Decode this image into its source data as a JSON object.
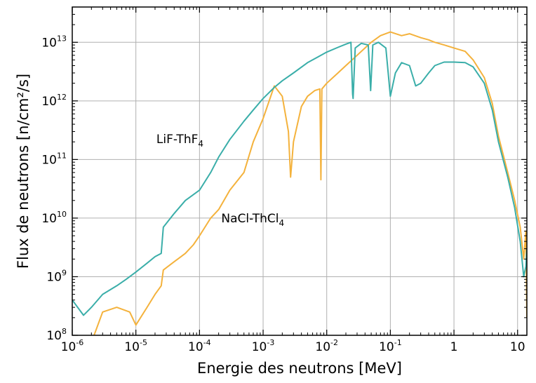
{
  "chart_data": {
    "type": "line",
    "xlabel": "Energie des neutrons [MeV]",
    "ylabel": "Flux de neutrons [n/cm²/s]",
    "xscale": "log",
    "yscale": "log",
    "xlim": [
      1e-06,
      14
    ],
    "ylim": [
      100000000.0,
      40000000000000.0
    ],
    "grid": true,
    "x_ticks": [
      {
        "value": 1e-06,
        "base": "10",
        "exp": "-6"
      },
      {
        "value": 1e-05,
        "base": "10",
        "exp": "-5"
      },
      {
        "value": 0.0001,
        "base": "10",
        "exp": "-4"
      },
      {
        "value": 0.001,
        "base": "10",
        "exp": "-3"
      },
      {
        "value": 0.01,
        "base": "10",
        "exp": "-2"
      },
      {
        "value": 0.1,
        "base": "10",
        "exp": "-1"
      },
      {
        "value": 1,
        "base": "1",
        "exp": ""
      },
      {
        "value": 10,
        "base": "10",
        "exp": ""
      }
    ],
    "y_ticks": [
      {
        "value": 100000000.0,
        "base": "10",
        "exp": "8"
      },
      {
        "value": 1000000000.0,
        "base": "10",
        "exp": "9"
      },
      {
        "value": 10000000000.0,
        "base": "10",
        "exp": "10"
      },
      {
        "value": 100000000000.0,
        "base": "10",
        "exp": "11"
      },
      {
        "value": 1000000000000.0,
        "base": "10",
        "exp": "12"
      },
      {
        "value": 10000000000000.0,
        "base": "10",
        "exp": "13"
      }
    ],
    "series": [
      {
        "name": "LiF-ThF4",
        "label_text": "LiF-ThF",
        "label_sub": "4",
        "label_at": [
          2.1e-05,
          190000000000.0
        ],
        "color": "#3aaea9",
        "points": [
          [
            1e-06,
            400000000.0
          ],
          [
            1.5e-06,
            220000000.0
          ],
          [
            2e-06,
            300000000.0
          ],
          [
            3e-06,
            500000000.0
          ],
          [
            5e-06,
            700000000.0
          ],
          [
            7e-06,
            900000000.0
          ],
          [
            1e-05,
            1200000000.0
          ],
          [
            1.5e-05,
            1700000000.0
          ],
          [
            2e-05,
            2200000000.0
          ],
          [
            2.5e-05,
            2500000000.0
          ],
          [
            2.7e-05,
            7000000000.0
          ],
          [
            4e-05,
            12000000000.0
          ],
          [
            6e-05,
            20000000000.0
          ],
          [
            0.0001,
            30000000000.0
          ],
          [
            0.00015,
            60000000000.0
          ],
          [
            0.0002,
            110000000000.0
          ],
          [
            0.0003,
            220000000000.0
          ],
          [
            0.0005,
            450000000000.0
          ],
          [
            0.0007,
            700000000000.0
          ],
          [
            0.001,
            1100000000000.0
          ],
          [
            0.0015,
            1700000000000.0
          ],
          [
            0.002,
            2200000000000.0
          ],
          [
            0.003,
            3000000000000.0
          ],
          [
            0.005,
            4500000000000.0
          ],
          [
            0.007,
            5500000000000.0
          ],
          [
            0.01,
            6800000000000.0
          ],
          [
            0.015,
            8200000000000.0
          ],
          [
            0.02,
            9300000000000.0
          ],
          [
            0.024,
            10000000000000.0
          ],
          [
            0.0255,
            1300000000000.0
          ],
          [
            0.026,
            1100000000000.0
          ],
          [
            0.028,
            8000000000000.0
          ],
          [
            0.035,
            9600000000000.0
          ],
          [
            0.045,
            9000000000000.0
          ],
          [
            0.049,
            1500000000000.0
          ],
          [
            0.053,
            9000000000000.0
          ],
          [
            0.065,
            10000000000000.0
          ],
          [
            0.085,
            8000000000000.0
          ],
          [
            0.1,
            1200000000000.0
          ],
          [
            0.12,
            3000000000000.0
          ],
          [
            0.15,
            4500000000000.0
          ],
          [
            0.2,
            4000000000000.0
          ],
          [
            0.25,
            1800000000000.0
          ],
          [
            0.3,
            2000000000000.0
          ],
          [
            0.4,
            3000000000000.0
          ],
          [
            0.5,
            4000000000000.0
          ],
          [
            0.7,
            4600000000000.0
          ],
          [
            1,
            4600000000000.0
          ],
          [
            1.5,
            4500000000000.0
          ],
          [
            2,
            3800000000000.0
          ],
          [
            3,
            2000000000000.0
          ],
          [
            4,
            700000000000.0
          ],
          [
            5,
            200000000000.0
          ],
          [
            7,
            50000000000.0
          ],
          [
            9,
            15000000000.0
          ],
          [
            11,
            4000000000.0
          ],
          [
            12.5,
            1000000000.0
          ],
          [
            13.5,
            1500000000.0
          ],
          [
            14,
            3000000000.0
          ]
        ]
      },
      {
        "name": "NaCl-ThCl4",
        "label_text": "NaCl-ThCl",
        "label_sub": "4",
        "label_at": [
          0.00022,
          8500000000.0
        ],
        "color": "#f4b23c",
        "points": [
          [
            2.2e-06,
            100000000.0
          ],
          [
            3e-06,
            250000000.0
          ],
          [
            5e-06,
            300000000.0
          ],
          [
            8e-06,
            250000000.0
          ],
          [
            1e-05,
            150000000.0
          ],
          [
            1.5e-05,
            300000000.0
          ],
          [
            2e-05,
            500000000.0
          ],
          [
            2.5e-05,
            700000000.0
          ],
          [
            2.7e-05,
            1300000000.0
          ],
          [
            4e-05,
            1800000000.0
          ],
          [
            6e-05,
            2500000000.0
          ],
          [
            8e-05,
            3500000000.0
          ],
          [
            0.0001,
            5000000000.0
          ],
          [
            0.00015,
            10000000000.0
          ],
          [
            0.0002,
            14000000000.0
          ],
          [
            0.0003,
            30000000000.0
          ],
          [
            0.0005,
            60000000000.0
          ],
          [
            0.0007,
            200000000000.0
          ],
          [
            0.001,
            500000000000.0
          ],
          [
            0.0015,
            1800000000000.0
          ],
          [
            0.002,
            1200000000000.0
          ],
          [
            0.0025,
            300000000000.0
          ],
          [
            0.0027,
            50000000000.0
          ],
          [
            0.003,
            200000000000.0
          ],
          [
            0.004,
            800000000000.0
          ],
          [
            0.005,
            1200000000000.0
          ],
          [
            0.0065,
            1500000000000.0
          ],
          [
            0.0078,
            1600000000000.0
          ],
          [
            0.0081,
            45000000000.0
          ],
          [
            0.0084,
            1600000000000.0
          ],
          [
            0.01,
            2000000000000.0
          ],
          [
            0.015,
            3000000000000.0
          ],
          [
            0.02,
            4000000000000.0
          ],
          [
            0.03,
            6000000000000.0
          ],
          [
            0.04,
            8000000000000.0
          ],
          [
            0.05,
            10000000000000.0
          ],
          [
            0.07,
            13000000000000.0
          ],
          [
            0.1,
            15000000000000.0
          ],
          [
            0.15,
            13000000000000.0
          ],
          [
            0.2,
            14000000000000.0
          ],
          [
            0.3,
            12000000000000.0
          ],
          [
            0.4,
            11000000000000.0
          ],
          [
            0.5,
            10000000000000.0
          ],
          [
            0.7,
            9000000000000.0
          ],
          [
            1,
            8000000000000.0
          ],
          [
            1.5,
            7000000000000.0
          ],
          [
            2,
            5000000000000.0
          ],
          [
            3,
            2500000000000.0
          ],
          [
            4,
            900000000000.0
          ],
          [
            5,
            250000000000.0
          ],
          [
            7,
            60000000000.0
          ],
          [
            9,
            20000000000.0
          ],
          [
            11,
            7000000000.0
          ],
          [
            12.5,
            2000000000.0
          ],
          [
            13.5,
            6000000000.0
          ],
          [
            14,
            200000000.0
          ]
        ]
      }
    ]
  }
}
